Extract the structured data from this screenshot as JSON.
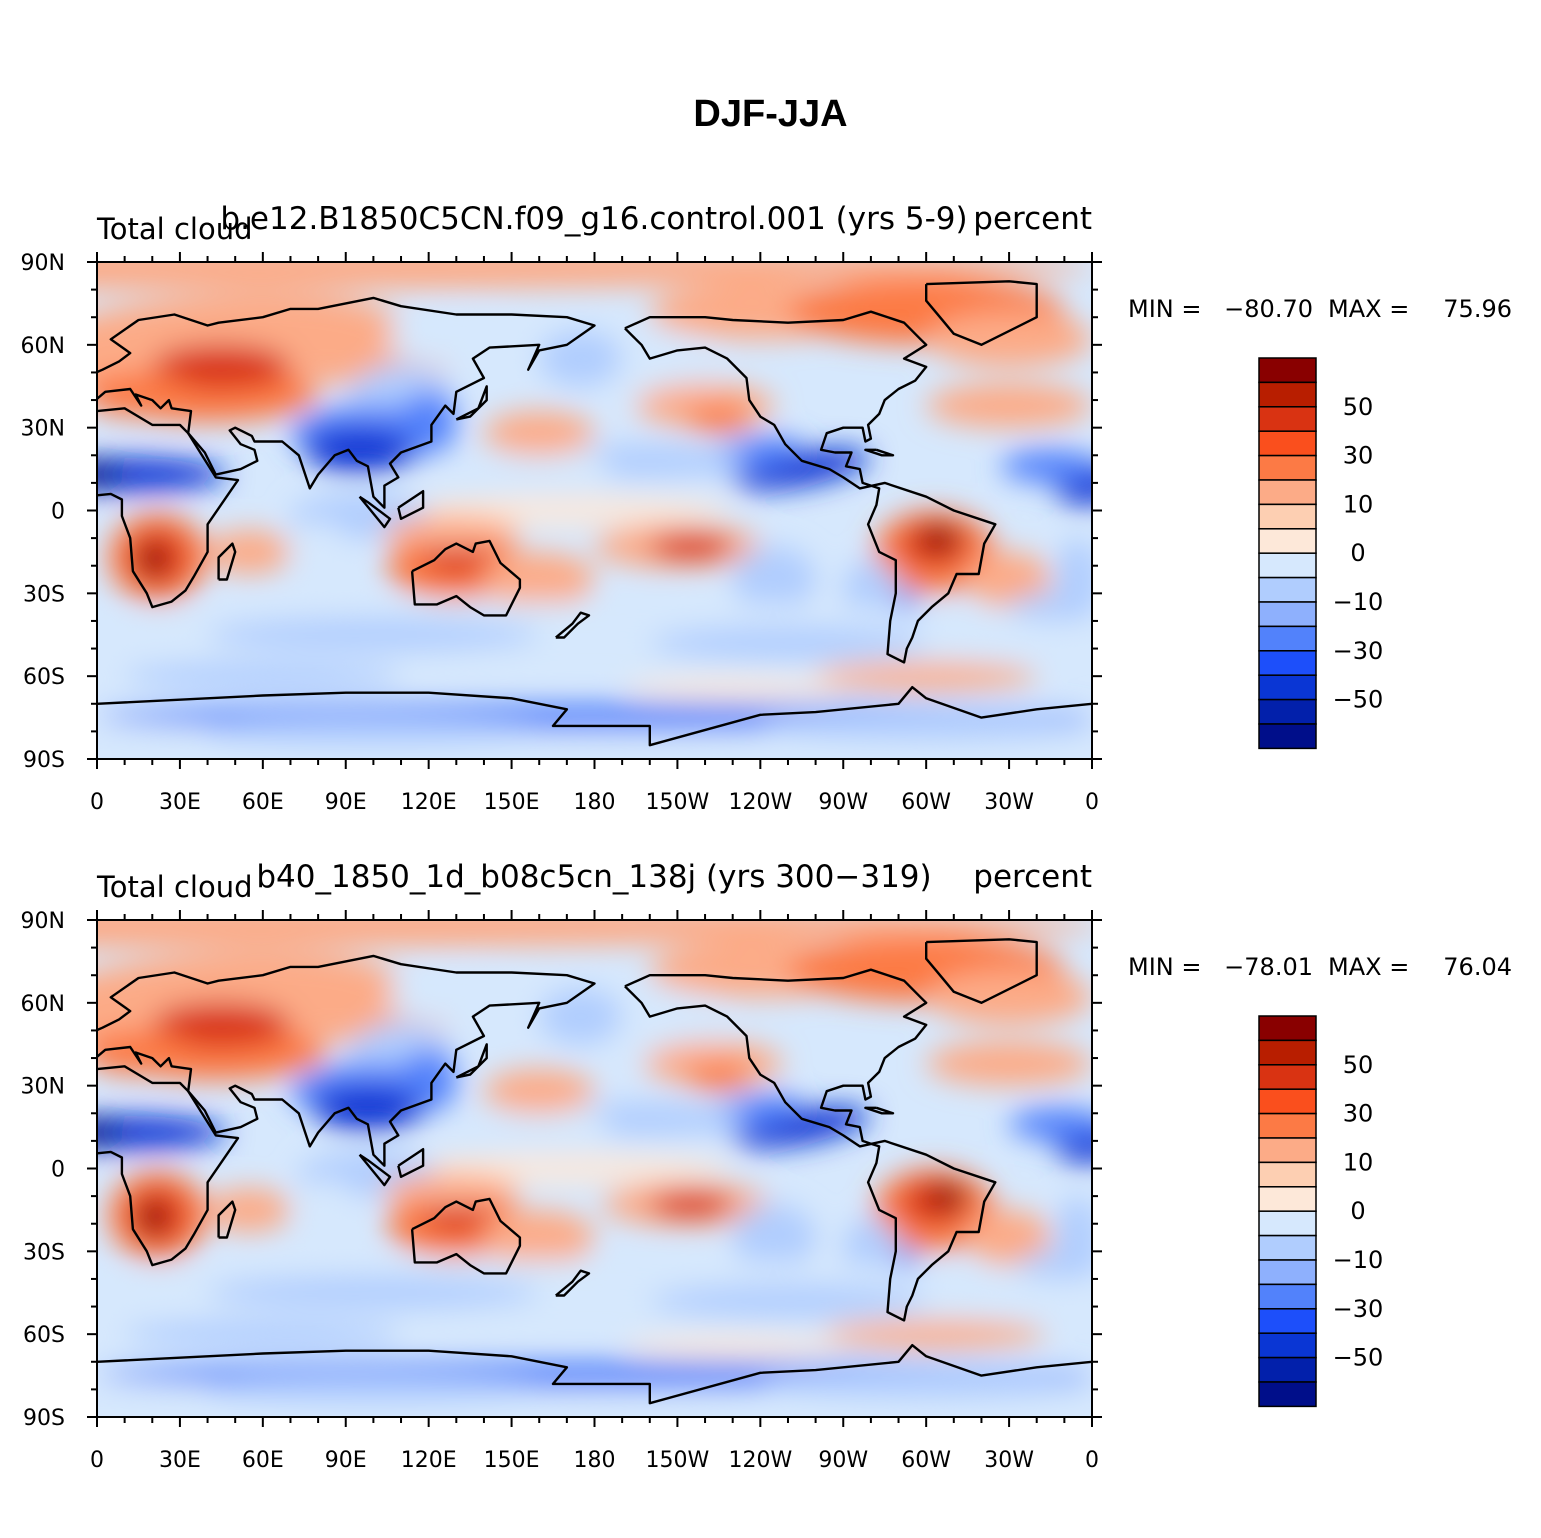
{
  "title": "DJF-JJA",
  "panels": [
    {
      "left_label": "Total cloud",
      "center_label": "b.e12.B1850C5CN.f09_g16.control.001 (yrs 5-9)",
      "right_label": "percent",
      "min_label": "MIN =",
      "min_value": "−80.70",
      "max_label": "MAX =",
      "max_value": "75.96"
    },
    {
      "left_label": "Total cloud",
      "center_label": "b40_1850_1d_b08c5cn_138j (yrs 300−319)",
      "right_label": "percent",
      "min_label": "MIN =",
      "min_value": "−78.01",
      "max_label": "MAX =",
      "max_value": "76.04"
    }
  ],
  "lat_ticks": [
    "90N",
    "60N",
    "30N",
    "0",
    "30S",
    "60S",
    "90S"
  ],
  "lon_ticks": [
    "0",
    "30E",
    "60E",
    "90E",
    "120E",
    "150E",
    "180",
    "150W",
    "120W",
    "90W",
    "60W",
    "30W",
    "0"
  ],
  "colorbar": {
    "colors": [
      "#890000",
      "#b81e00",
      "#d93312",
      "#fa4f1d",
      "#fc7a45",
      "#fcab87",
      "#fdcfb2",
      "#fde8d9",
      "#d6e8fd",
      "#b0cdfe",
      "#8eb0fd",
      "#5282fb",
      "#1d4ffa",
      "#0a36d4",
      "#0220ab",
      "#000e8a"
    ],
    "labels": [
      "50",
      "30",
      "10",
      "0",
      "−10",
      "−30",
      "−50"
    ]
  },
  "chart_data": [
    {
      "type": "heatmap",
      "title": "b.e12.B1850C5CN.f09_g16.control.001 (yrs 5-9)",
      "variable": "Total cloud",
      "units": "percent",
      "xlabel": "",
      "ylabel": "",
      "xlim": [
        0,
        360
      ],
      "ylim": [
        -90,
        90
      ],
      "min": -80.7,
      "max": 75.96,
      "levels": [
        -70,
        -60,
        -50,
        -40,
        -30,
        -20,
        -10,
        -5,
        0,
        5,
        10,
        20,
        30,
        40,
        50,
        60,
        70
      ],
      "features": [
        {
          "name": "southern Africa",
          "lon": 22,
          "lat": -17,
          "value": 60
        },
        {
          "name": "Australia",
          "lon": 130,
          "lat": -18,
          "value": 50
        },
        {
          "name": "South America",
          "lon": 303,
          "lat": -12,
          "value": 60
        },
        {
          "name": "Eurasia",
          "lon": 50,
          "lat": 50,
          "value": 35
        },
        {
          "name": "Sahel",
          "lon": 5,
          "lat": 13,
          "value": -55
        },
        {
          "name": "South Asia",
          "lon": 95,
          "lat": 25,
          "value": -55
        },
        {
          "name": "Central America",
          "lon": 265,
          "lat": 10,
          "value": -50
        }
      ]
    },
    {
      "type": "heatmap",
      "title": "b40_1850_1d_b08c5cn_138j (yrs 300−319)",
      "variable": "Total cloud",
      "units": "percent",
      "xlabel": "",
      "ylabel": "",
      "xlim": [
        0,
        360
      ],
      "ylim": [
        -90,
        90
      ],
      "min": -78.01,
      "max": 76.04,
      "levels": [
        -70,
        -60,
        -50,
        -40,
        -30,
        -20,
        -10,
        -5,
        0,
        5,
        10,
        20,
        30,
        40,
        50,
        60,
        70
      ],
      "features": [
        {
          "name": "southern Africa",
          "lon": 22,
          "lat": -17,
          "value": 58
        },
        {
          "name": "Australia",
          "lon": 130,
          "lat": -18,
          "value": 45
        },
        {
          "name": "South America",
          "lon": 305,
          "lat": -12,
          "value": 60
        },
        {
          "name": "Eurasia",
          "lon": 50,
          "lat": 50,
          "value": 35
        },
        {
          "name": "Sahel",
          "lon": 5,
          "lat": 13,
          "value": -55
        },
        {
          "name": "South Asia",
          "lon": 95,
          "lat": 25,
          "value": -55
        },
        {
          "name": "Central America",
          "lon": 265,
          "lat": 10,
          "value": -50
        }
      ]
    }
  ]
}
